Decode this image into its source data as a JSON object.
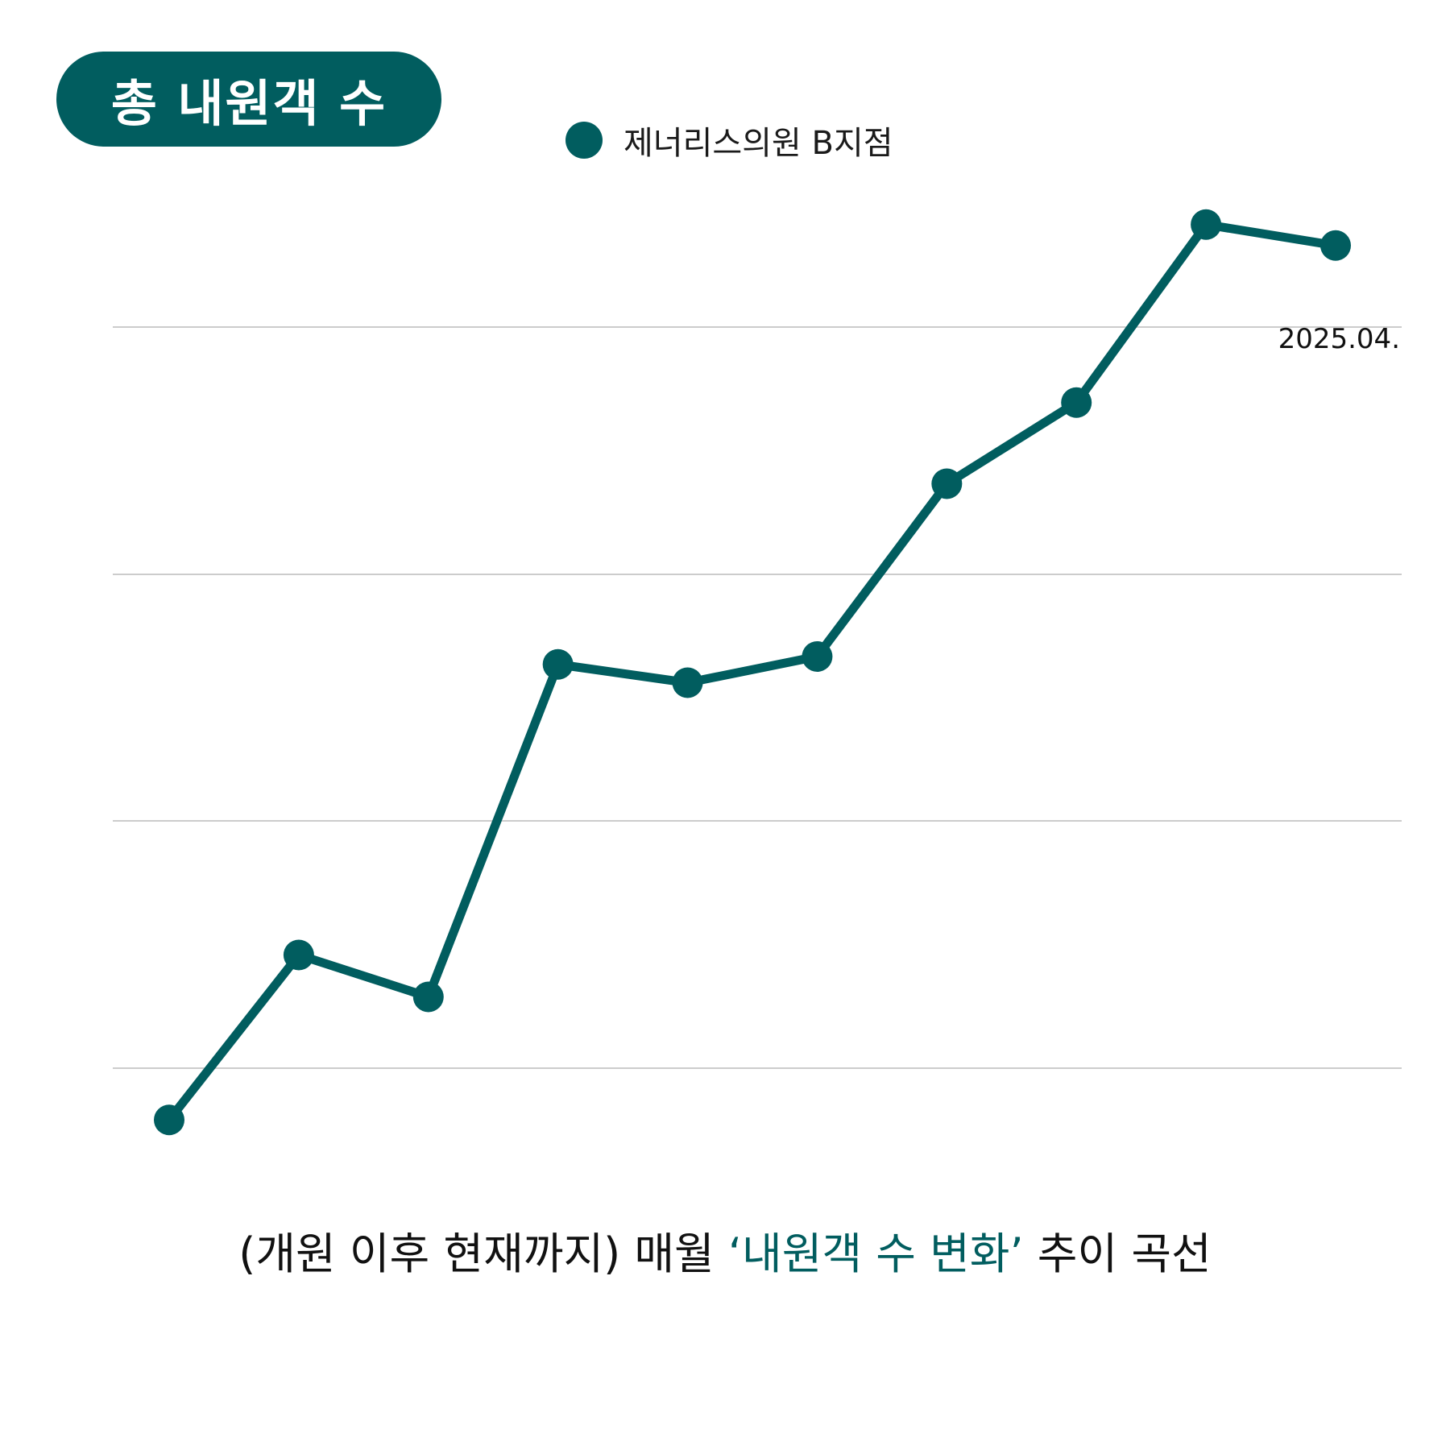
{
  "colors": {
    "accent": "#015d5f",
    "grid": "#cccccc",
    "text": "#111111"
  },
  "chart_data": {
    "type": "line",
    "title": "총 내원객 수",
    "legend": {
      "position": "top-center",
      "entries": [
        "제너리스의원 B지점"
      ]
    },
    "grid": true,
    "end_label": "2025.04.",
    "series": [
      {
        "name": "제너리스의원 B지점",
        "values": [
          0.3,
          6.6,
          5.0,
          17.7,
          17.0,
          18.0,
          24.6,
          27.7,
          34.5,
          33.7
        ]
      }
    ],
    "ylim": [
      0,
      40
    ]
  },
  "caption": {
    "prefix": "(개원 이후 현재까지) 매월 ",
    "highlight": "‘내원객 수 변화’",
    "suffix": " 추이 곡선"
  }
}
